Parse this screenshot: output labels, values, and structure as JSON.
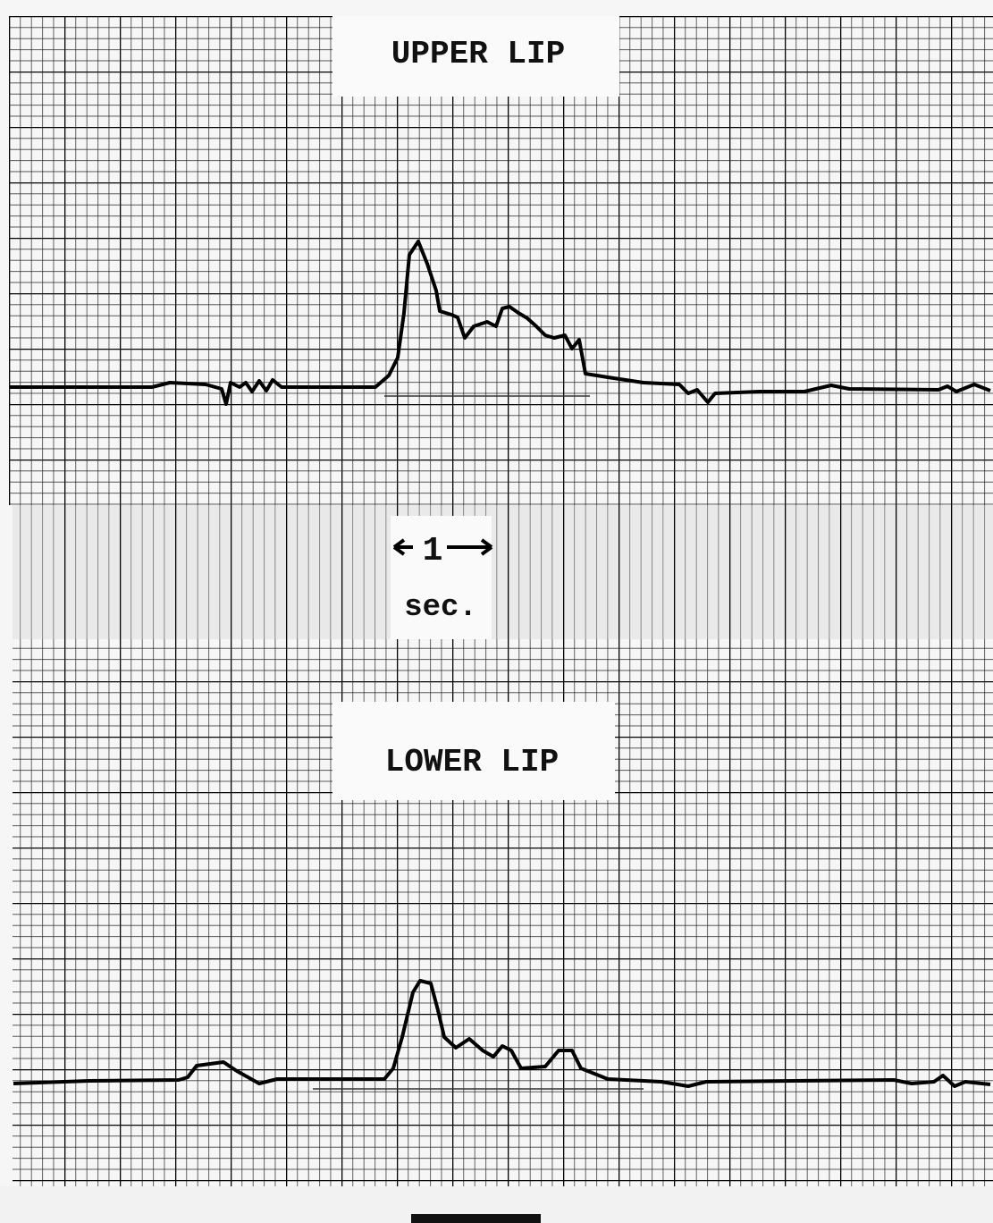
{
  "labels": {
    "upper": "UPPER LIP",
    "scale_number": "1",
    "scale_unit": "sec.",
    "lower": "LOWER LIP"
  }
}
